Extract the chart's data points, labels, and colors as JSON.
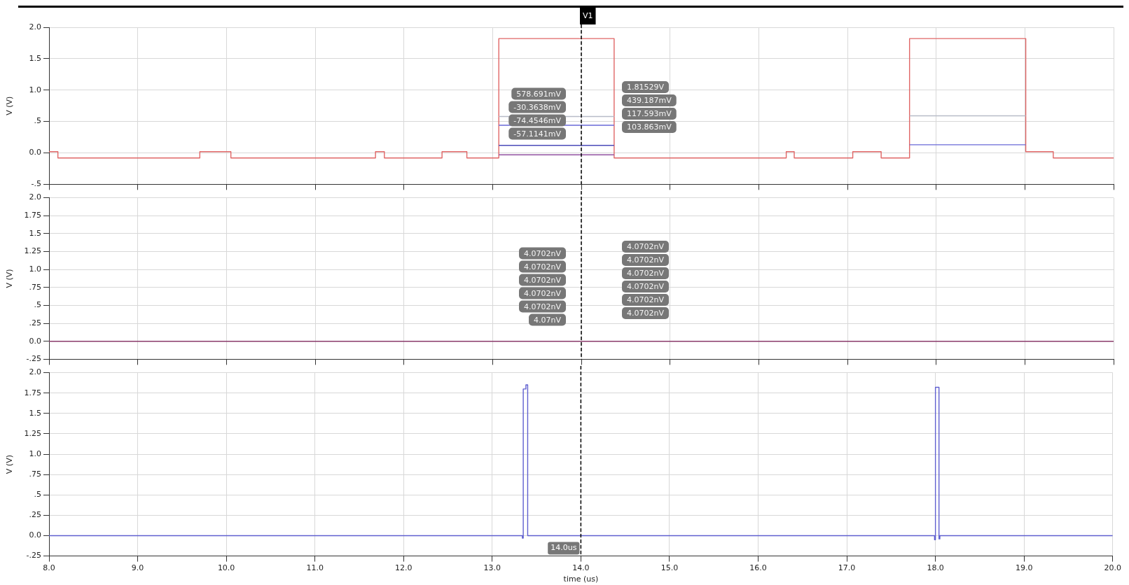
{
  "chart_data": [
    {
      "type": "step",
      "ylabel": "V (V)",
      "tick_labels": "y",
      "grid": true,
      "xlim": [
        8,
        20
      ],
      "xticks": [
        {
          "value": 8,
          "label": null
        },
        {
          "value": 9,
          "label": null
        },
        {
          "value": 10,
          "label": null
        },
        {
          "value": 11,
          "label": null
        },
        {
          "value": 12,
          "label": null
        },
        {
          "value": 13,
          "label": null
        },
        {
          "value": 14,
          "label": null
        },
        {
          "value": 15,
          "label": null
        },
        {
          "value": 16,
          "label": null
        },
        {
          "value": 17,
          "label": null
        },
        {
          "value": 18,
          "label": null
        },
        {
          "value": 19,
          "label": null
        },
        {
          "value": 20,
          "label": null
        }
      ],
      "ylim": [
        -0.5,
        2
      ],
      "yticks": [
        {
          "value": -0.5,
          "label": "-.5"
        },
        {
          "value": 0,
          "label": "0.0"
        },
        {
          "value": 0.5,
          "label": ".5"
        },
        {
          "value": 1,
          "label": "1.0"
        },
        {
          "value": 1.5,
          "label": "1.5"
        },
        {
          "value": 2,
          "label": "2.0"
        }
      ],
      "series": [
        {
          "color": "#9050a0",
          "x": [
            13.07,
            14.37
          ],
          "values": [
            -0.03,
            -0.03
          ]
        },
        {
          "color": "#4a4ab8",
          "x": [
            13.07,
            14.37
          ],
          "values": [
            0.12,
            0.12
          ]
        },
        {
          "color": "#6a6ad8",
          "x": [
            13.07,
            14.37,
            16,
            17.7,
            19.01
          ],
          "values": [
            0.44,
            0.44,
            null,
            0.13,
            0.13
          ]
        },
        {
          "color": "#b8bcc8",
          "x": [
            13.07,
            14.37,
            16,
            17.7,
            19.01
          ],
          "values": [
            0.58,
            0.58,
            null,
            0.59,
            0.59
          ]
        },
        {
          "color": "#e06666",
          "x": [
            8.0,
            8.1,
            9.7,
            10.05,
            11.68,
            11.78,
            12.43,
            12.71,
            13.07,
            14.37,
            16.31,
            16.4,
            17.06,
            17.38,
            17.7,
            19.01,
            19.32,
            20.0
          ],
          "values": [
            0.02,
            -0.08,
            0.02,
            -0.08,
            0.02,
            -0.08,
            0.02,
            -0.08,
            1.82,
            -0.08,
            0.02,
            -0.08,
            0.02,
            -0.08,
            1.82,
            0.02,
            -0.08,
            -0.08
          ]
        }
      ],
      "ref_lines": [
        {
          "axis": "x",
          "value": 14,
          "label": "V1",
          "color": "#000000",
          "line_style": "dashed"
        }
      ],
      "annotations": [
        "1.81529V",
        "578.691mV",
        "439.187mV",
        "-30.3638mV",
        "117.593mV",
        "-74.4546mV",
        "103.863mV",
        "-57.1141mV"
      ]
    },
    {
      "type": "line",
      "ylabel": "V (V)",
      "tick_labels": "y",
      "grid": true,
      "xlim": [
        8,
        20
      ],
      "xticks": [
        {
          "value": 8,
          "label": null
        },
        {
          "value": 9,
          "label": null
        },
        {
          "value": 10,
          "label": null
        },
        {
          "value": 11,
          "label": null
        },
        {
          "value": 12,
          "label": null
        },
        {
          "value": 13,
          "label": null
        },
        {
          "value": 14,
          "label": null
        },
        {
          "value": 15,
          "label": null
        },
        {
          "value": 16,
          "label": null
        },
        {
          "value": 17,
          "label": null
        },
        {
          "value": 18,
          "label": null
        },
        {
          "value": 19,
          "label": null
        },
        {
          "value": 20,
          "label": null
        }
      ],
      "ylim": [
        -0.25,
        2
      ],
      "yticks": [
        {
          "value": -0.25,
          "label": "-.25"
        },
        {
          "value": 0,
          "label": "0.0"
        },
        {
          "value": 0.25,
          "label": ".25"
        },
        {
          "value": 0.5,
          "label": ".5"
        },
        {
          "value": 0.75,
          "label": ".75"
        },
        {
          "value": 1,
          "label": "1.0"
        },
        {
          "value": 1.25,
          "label": "1.25"
        },
        {
          "value": 1.5,
          "label": "1.5"
        },
        {
          "value": 1.75,
          "label": "1.75"
        },
        {
          "value": 2,
          "label": "2.0"
        }
      ],
      "series": [
        {
          "color": "#8a3a6a",
          "x": [
            8,
            20
          ],
          "values": [
            0,
            0
          ]
        }
      ],
      "ref_lines": [
        {
          "axis": "x",
          "value": 14,
          "color": "#000000",
          "line_style": "dashed"
        }
      ],
      "annotations": [
        "4.0702nV",
        "4.0702nV",
        "4.0702nV",
        "4.0702nV",
        "4.0702nV",
        "4.0702nV",
        "4.0702nV",
        "4.0702nV",
        "4.0702nV",
        "4.0702nV",
        "4.0702nV",
        "4.07nV"
      ]
    },
    {
      "type": "step",
      "ylabel": "V (V)",
      "xlabel": "time (us)",
      "grid": true,
      "xlim": [
        8,
        20
      ],
      "xticks": [
        {
          "value": 8,
          "label": "8.0"
        },
        {
          "value": 9,
          "label": "9.0"
        },
        {
          "value": 10,
          "label": "10.0"
        },
        {
          "value": 11,
          "label": "11.0"
        },
        {
          "value": 12,
          "label": "12.0"
        },
        {
          "value": 13,
          "label": "13.0"
        },
        {
          "value": 14,
          "label": "14.0"
        },
        {
          "value": 15,
          "label": "15.0"
        },
        {
          "value": 16,
          "label": "16.0"
        },
        {
          "value": 17,
          "label": "17.0"
        },
        {
          "value": 18,
          "label": "18.0"
        },
        {
          "value": 19,
          "label": "19.0"
        },
        {
          "value": 20,
          "label": "20.0"
        }
      ],
      "ylim": [
        -0.25,
        2
      ],
      "yticks": [
        {
          "value": -0.25,
          "label": "-.25"
        },
        {
          "value": 0,
          "label": "0.0"
        },
        {
          "value": 0.25,
          "label": ".25"
        },
        {
          "value": 0.5,
          "label": ".5"
        },
        {
          "value": 0.75,
          "label": ".75"
        },
        {
          "value": 1,
          "label": "1.0"
        },
        {
          "value": 1.25,
          "label": "1.25"
        },
        {
          "value": 1.5,
          "label": "1.5"
        },
        {
          "value": 1.75,
          "label": "1.75"
        },
        {
          "value": 2,
          "label": "2.0"
        }
      ],
      "series": [
        {
          "color": "#6060d0",
          "x": [
            8,
            13.34,
            13.35,
            13.38,
            13.4,
            17.99,
            18.0,
            18.04,
            18.05,
            20
          ],
          "values": [
            0,
            -0.03,
            1.8,
            1.85,
            0,
            -0.05,
            1.82,
            -0.04,
            0,
            0
          ]
        }
      ],
      "ref_lines": [
        {
          "axis": "x",
          "value": 14,
          "label": "14.0us",
          "color": "#000000",
          "line_style": "dashed"
        }
      ]
    }
  ]
}
